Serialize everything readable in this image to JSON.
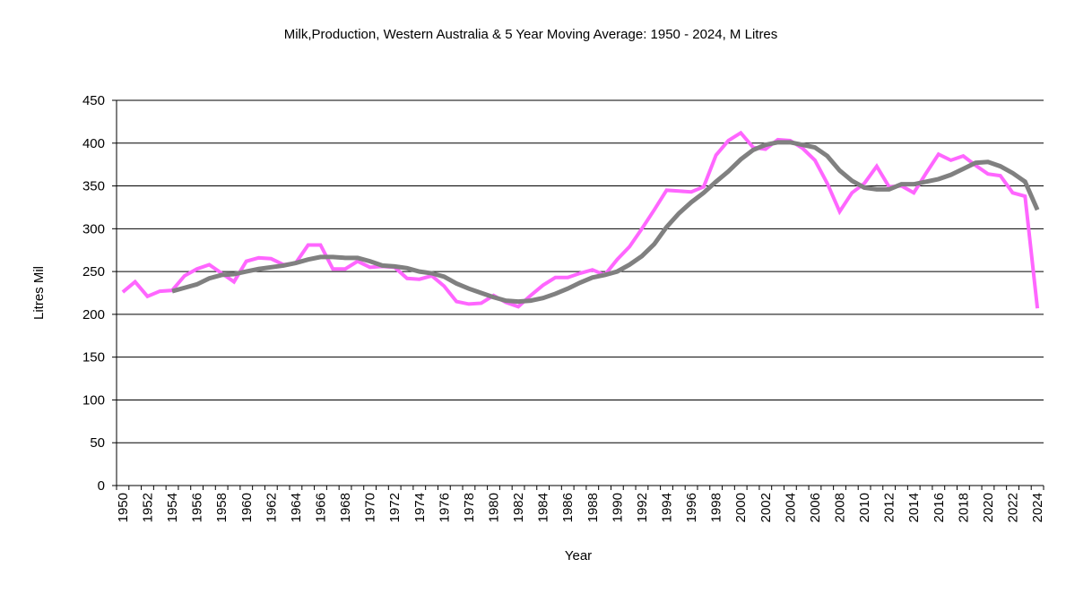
{
  "chart_data": {
    "type": "line",
    "title": "Milk,Production, Western Australia & 5 Year Moving Average: 1950 - 2024, M Litres",
    "xlabel": "Year",
    "ylabel": "Litres Mil",
    "ylim": [
      0,
      450
    ],
    "yticks": [
      0,
      50,
      100,
      150,
      200,
      250,
      300,
      350,
      400,
      450
    ],
    "grid": true,
    "legend": "none",
    "x": [
      1950,
      1951,
      1952,
      1953,
      1954,
      1955,
      1956,
      1957,
      1958,
      1959,
      1960,
      1961,
      1962,
      1963,
      1964,
      1965,
      1966,
      1967,
      1968,
      1969,
      1970,
      1971,
      1972,
      1973,
      1974,
      1975,
      1976,
      1977,
      1978,
      1979,
      1980,
      1981,
      1982,
      1983,
      1984,
      1985,
      1986,
      1987,
      1988,
      1989,
      1990,
      1991,
      1992,
      1993,
      1994,
      1995,
      1996,
      1997,
      1998,
      1999,
      2000,
      2001,
      2002,
      2003,
      2004,
      2005,
      2006,
      2007,
      2008,
      2009,
      2010,
      2011,
      2012,
      2013,
      2014,
      2015,
      2016,
      2017,
      2018,
      2019,
      2020,
      2021,
      2022,
      2023,
      2024
    ],
    "xtick_labels": [
      "1950",
      "1952",
      "1954",
      "1956",
      "1958",
      "1960",
      "1962",
      "1964",
      "1966",
      "1968",
      "1970",
      "1972",
      "1974",
      "1976",
      "1978",
      "1980",
      "1982",
      "1984",
      "1986",
      "1988",
      "1990",
      "1992",
      "1994",
      "1996",
      "1998",
      "2000",
      "2002",
      "2004",
      "2006",
      "2008",
      "2010",
      "2012",
      "2014",
      "2016",
      "2018",
      "2020",
      "2022",
      "2024"
    ],
    "series": [
      {
        "name": "Milk Production",
        "color": "#ff66ff",
        "values": [
          226,
          238,
          221,
          227,
          228,
          245,
          253,
          258,
          248,
          238,
          262,
          266,
          265,
          258,
          260,
          281,
          281,
          253,
          253,
          262,
          255,
          256,
          255,
          242,
          241,
          245,
          233,
          215,
          212,
          213,
          222,
          214,
          209,
          222,
          234,
          243,
          243,
          248,
          252,
          246,
          264,
          279,
          300,
          322,
          345,
          344,
          343,
          349,
          386,
          403,
          412,
          395,
          393,
          404,
          403,
          394,
          380,
          353,
          320,
          342,
          353,
          373,
          349,
          350,
          342,
          365,
          387,
          380,
          385,
          374,
          364,
          362,
          342,
          338,
          207
        ]
      },
      {
        "name": "5 Year Moving Average",
        "color": "#808080",
        "values": [
          null,
          null,
          null,
          null,
          227,
          231,
          235,
          242,
          246,
          247,
          250,
          253,
          255,
          257,
          260,
          264,
          267,
          267,
          266,
          266,
          262,
          257,
          256,
          254,
          250,
          248,
          244,
          236,
          230,
          225,
          220,
          216,
          215,
          216,
          219,
          224,
          230,
          237,
          243,
          246,
          250,
          258,
          268,
          282,
          302,
          318,
          331,
          342,
          355,
          367,
          381,
          392,
          398,
          401,
          401,
          398,
          395,
          385,
          368,
          356,
          348,
          346,
          346,
          352,
          352,
          355,
          358,
          363,
          370,
          377,
          378,
          373,
          365,
          355,
          322
        ]
      }
    ]
  }
}
